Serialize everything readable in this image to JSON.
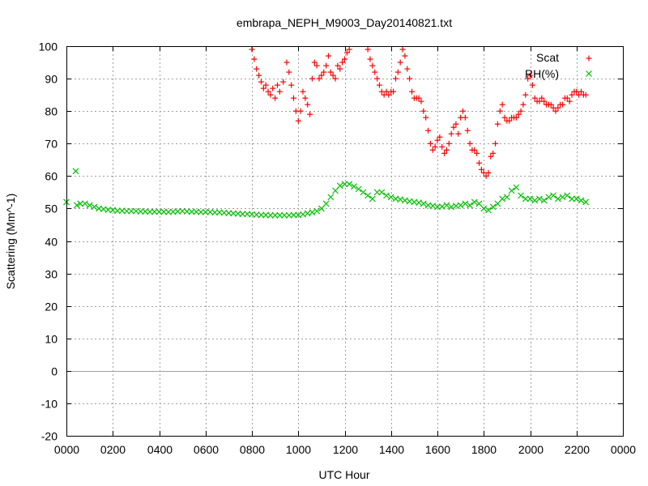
{
  "chart_data": {
    "type": "scatter",
    "title": "embrapa_NEPH_M9003_Day20140821.txt",
    "xlabel": "UTC Hour",
    "ylabel": "Scattering (Mm^-1)",
    "xlim": [
      0,
      24
    ],
    "ylim": [
      -20,
      100
    ],
    "x_tick_labels": [
      "0000",
      "0200",
      "0400",
      "0600",
      "0800",
      "1000",
      "1200",
      "1400",
      "1600",
      "1800",
      "2000",
      "2200",
      "0000"
    ],
    "y_tick_labels": [
      "-20",
      "-10",
      "0",
      "10",
      "20",
      "30",
      "40",
      "50",
      "60",
      "70",
      "80",
      "90",
      "100"
    ],
    "grid": true,
    "legend_position": "top-right",
    "series": [
      {
        "name": "Scat",
        "marker": "plus",
        "color": "#ff0000",
        "points": [
          [
            8.0,
            99
          ],
          [
            8.1,
            96
          ],
          [
            8.2,
            93
          ],
          [
            8.3,
            91
          ],
          [
            8.4,
            89
          ],
          [
            8.5,
            87
          ],
          [
            8.6,
            88
          ],
          [
            8.7,
            86
          ],
          [
            8.8,
            85
          ],
          [
            8.9,
            87
          ],
          [
            9.0,
            84
          ],
          [
            9.1,
            88
          ],
          [
            9.2,
            86
          ],
          [
            9.35,
            89
          ],
          [
            9.5,
            95
          ],
          [
            9.6,
            92
          ],
          [
            9.7,
            88
          ],
          [
            9.8,
            84
          ],
          [
            9.9,
            80
          ],
          [
            10.0,
            77
          ],
          [
            10.1,
            80
          ],
          [
            10.2,
            86
          ],
          [
            10.3,
            84
          ],
          [
            10.4,
            82
          ],
          [
            10.5,
            79
          ],
          [
            10.6,
            90
          ],
          [
            10.7,
            95
          ],
          [
            10.8,
            94
          ],
          [
            10.9,
            90
          ],
          [
            11.0,
            91
          ],
          [
            11.1,
            92
          ],
          [
            11.2,
            94
          ],
          [
            11.3,
            97
          ],
          [
            11.4,
            92
          ],
          [
            11.5,
            91
          ],
          [
            11.6,
            90
          ],
          [
            11.7,
            94
          ],
          [
            11.8,
            93
          ],
          [
            11.9,
            95
          ],
          [
            12.0,
            96
          ],
          [
            12.1,
            98
          ],
          [
            12.2,
            99
          ],
          [
            13.0,
            99
          ],
          [
            13.1,
            96
          ],
          [
            13.2,
            94
          ],
          [
            13.3,
            92
          ],
          [
            13.4,
            90
          ],
          [
            13.5,
            88
          ],
          [
            13.6,
            86
          ],
          [
            13.7,
            85
          ],
          [
            13.8,
            86
          ],
          [
            13.9,
            85
          ],
          [
            14.0,
            86
          ],
          [
            14.1,
            86
          ],
          [
            14.2,
            90
          ],
          [
            14.3,
            92
          ],
          [
            14.4,
            95
          ],
          [
            14.5,
            99
          ],
          [
            14.6,
            97
          ],
          [
            14.7,
            93
          ],
          [
            14.8,
            90
          ],
          [
            14.9,
            86
          ],
          [
            15.0,
            84
          ],
          [
            15.1,
            84
          ],
          [
            15.2,
            84
          ],
          [
            15.3,
            83
          ],
          [
            15.4,
            80
          ],
          [
            15.5,
            78
          ],
          [
            15.6,
            74
          ],
          [
            15.7,
            70
          ],
          [
            15.8,
            68
          ],
          [
            15.9,
            69
          ],
          [
            16.0,
            71
          ],
          [
            16.1,
            72
          ],
          [
            16.2,
            69
          ],
          [
            16.3,
            67
          ],
          [
            16.4,
            68
          ],
          [
            16.5,
            70
          ],
          [
            16.6,
            73
          ],
          [
            16.7,
            75
          ],
          [
            16.8,
            76
          ],
          [
            16.9,
            73
          ],
          [
            17.0,
            78
          ],
          [
            17.1,
            80
          ],
          [
            17.2,
            78
          ],
          [
            17.3,
            74
          ],
          [
            17.4,
            70
          ],
          [
            17.5,
            68
          ],
          [
            17.6,
            68
          ],
          [
            17.7,
            67
          ],
          [
            17.8,
            64
          ],
          [
            17.9,
            62
          ],
          [
            18.0,
            61
          ],
          [
            18.1,
            60
          ],
          [
            18.2,
            61
          ],
          [
            18.3,
            66
          ],
          [
            18.4,
            67
          ],
          [
            18.5,
            70
          ],
          [
            18.6,
            76
          ],
          [
            18.7,
            80
          ],
          [
            18.8,
            82
          ],
          [
            18.9,
            78
          ],
          [
            19.0,
            77
          ],
          [
            19.1,
            77
          ],
          [
            19.2,
            78
          ],
          [
            19.3,
            78
          ],
          [
            19.4,
            78
          ],
          [
            19.5,
            79
          ],
          [
            19.6,
            80
          ],
          [
            19.7,
            82
          ],
          [
            19.8,
            85
          ],
          [
            19.9,
            90
          ],
          [
            20.0,
            91
          ],
          [
            20.1,
            88
          ],
          [
            20.2,
            84
          ],
          [
            20.3,
            83
          ],
          [
            20.4,
            83
          ],
          [
            20.5,
            84
          ],
          [
            20.6,
            83
          ],
          [
            20.7,
            82
          ],
          [
            20.8,
            82
          ],
          [
            20.9,
            82
          ],
          [
            21.0,
            81
          ],
          [
            21.1,
            80
          ],
          [
            21.2,
            81
          ],
          [
            21.3,
            82
          ],
          [
            21.4,
            82
          ],
          [
            21.5,
            84
          ],
          [
            21.6,
            84
          ],
          [
            21.7,
            83
          ],
          [
            21.8,
            85
          ],
          [
            21.9,
            86
          ],
          [
            22.0,
            86
          ],
          [
            22.1,
            85
          ],
          [
            22.2,
            86
          ],
          [
            22.3,
            85
          ],
          [
            22.4,
            85
          ]
        ]
      },
      {
        "name": "RH(%)",
        "marker": "cross",
        "color": "#00c000",
        "points": [
          [
            0.0,
            52
          ],
          [
            0.4,
            61.5
          ],
          [
            0.45,
            51
          ],
          [
            0.6,
            51.5
          ],
          [
            0.8,
            51.5
          ],
          [
            1.0,
            51
          ],
          [
            1.2,
            50.5
          ],
          [
            1.4,
            50
          ],
          [
            1.6,
            49.8
          ],
          [
            1.8,
            49.6
          ],
          [
            2.0,
            49.5
          ],
          [
            2.2,
            49.3
          ],
          [
            2.4,
            49.3
          ],
          [
            2.6,
            49.2
          ],
          [
            2.8,
            49.2
          ],
          [
            3.0,
            49.2
          ],
          [
            3.2,
            49.1
          ],
          [
            3.4,
            49.1
          ],
          [
            3.6,
            49.0
          ],
          [
            3.8,
            49.0
          ],
          [
            4.0,
            49.0
          ],
          [
            4.2,
            49.0
          ],
          [
            4.4,
            48.9
          ],
          [
            4.6,
            49.0
          ],
          [
            4.8,
            49.1
          ],
          [
            5.0,
            49.2
          ],
          [
            5.2,
            49.1
          ],
          [
            5.4,
            49.0
          ],
          [
            5.6,
            49.0
          ],
          [
            5.8,
            48.9
          ],
          [
            6.0,
            48.9
          ],
          [
            6.2,
            48.9
          ],
          [
            6.4,
            48.8
          ],
          [
            6.6,
            48.8
          ],
          [
            6.8,
            48.7
          ],
          [
            7.0,
            48.6
          ],
          [
            7.2,
            48.5
          ],
          [
            7.4,
            48.4
          ],
          [
            7.6,
            48.3
          ],
          [
            7.8,
            48.3
          ],
          [
            8.0,
            48.2
          ],
          [
            8.2,
            48.1
          ],
          [
            8.4,
            48.0
          ],
          [
            8.6,
            48.0
          ],
          [
            8.8,
            47.9
          ],
          [
            9.0,
            47.9
          ],
          [
            9.2,
            47.9
          ],
          [
            9.4,
            47.9
          ],
          [
            9.6,
            47.9
          ],
          [
            9.8,
            48.0
          ],
          [
            10.0,
            48.0
          ],
          [
            10.2,
            48.2
          ],
          [
            10.4,
            48.5
          ],
          [
            10.6,
            48.8
          ],
          [
            10.8,
            49.2
          ],
          [
            11.0,
            50.0
          ],
          [
            11.2,
            51.5
          ],
          [
            11.4,
            53.5
          ],
          [
            11.6,
            55.5
          ],
          [
            11.8,
            57.0
          ],
          [
            12.0,
            57.5
          ],
          [
            12.2,
            57.5
          ],
          [
            12.4,
            56.8
          ],
          [
            12.6,
            56.0
          ],
          [
            12.8,
            55.0
          ],
          [
            13.0,
            54.0
          ],
          [
            13.2,
            53.0
          ],
          [
            13.4,
            55.0
          ],
          [
            13.6,
            55.0
          ],
          [
            13.8,
            54.0
          ],
          [
            14.0,
            53.5
          ],
          [
            14.2,
            53.0
          ],
          [
            14.4,
            52.8
          ],
          [
            14.6,
            52.5
          ],
          [
            14.8,
            52.2
          ],
          [
            15.0,
            52.0
          ],
          [
            15.2,
            51.8
          ],
          [
            15.4,
            51.5
          ],
          [
            15.6,
            51.0
          ],
          [
            15.8,
            50.8
          ],
          [
            16.0,
            50.5
          ],
          [
            16.2,
            50.6
          ],
          [
            16.4,
            51.0
          ],
          [
            16.6,
            50.5
          ],
          [
            16.8,
            50.8
          ],
          [
            17.0,
            51.0
          ],
          [
            17.2,
            51.5
          ],
          [
            17.4,
            51.0
          ],
          [
            17.6,
            52.0
          ],
          [
            17.8,
            51.5
          ],
          [
            18.0,
            50.0
          ],
          [
            18.2,
            49.5
          ],
          [
            18.4,
            50.5
          ],
          [
            18.6,
            51.5
          ],
          [
            18.8,
            53.0
          ],
          [
            19.0,
            53.5
          ],
          [
            19.2,
            55.5
          ],
          [
            19.4,
            56.5
          ],
          [
            19.6,
            54.0
          ],
          [
            19.8,
            53.0
          ],
          [
            20.0,
            53.0
          ],
          [
            20.2,
            52.5
          ],
          [
            20.4,
            53.0
          ],
          [
            20.6,
            52.5
          ],
          [
            20.8,
            53.5
          ],
          [
            21.0,
            54.0
          ],
          [
            21.2,
            53.0
          ],
          [
            21.4,
            53.5
          ],
          [
            21.6,
            54.0
          ],
          [
            21.8,
            53.0
          ],
          [
            22.0,
            53.0
          ],
          [
            22.2,
            52.5
          ],
          [
            22.4,
            52.0
          ]
        ]
      }
    ]
  }
}
